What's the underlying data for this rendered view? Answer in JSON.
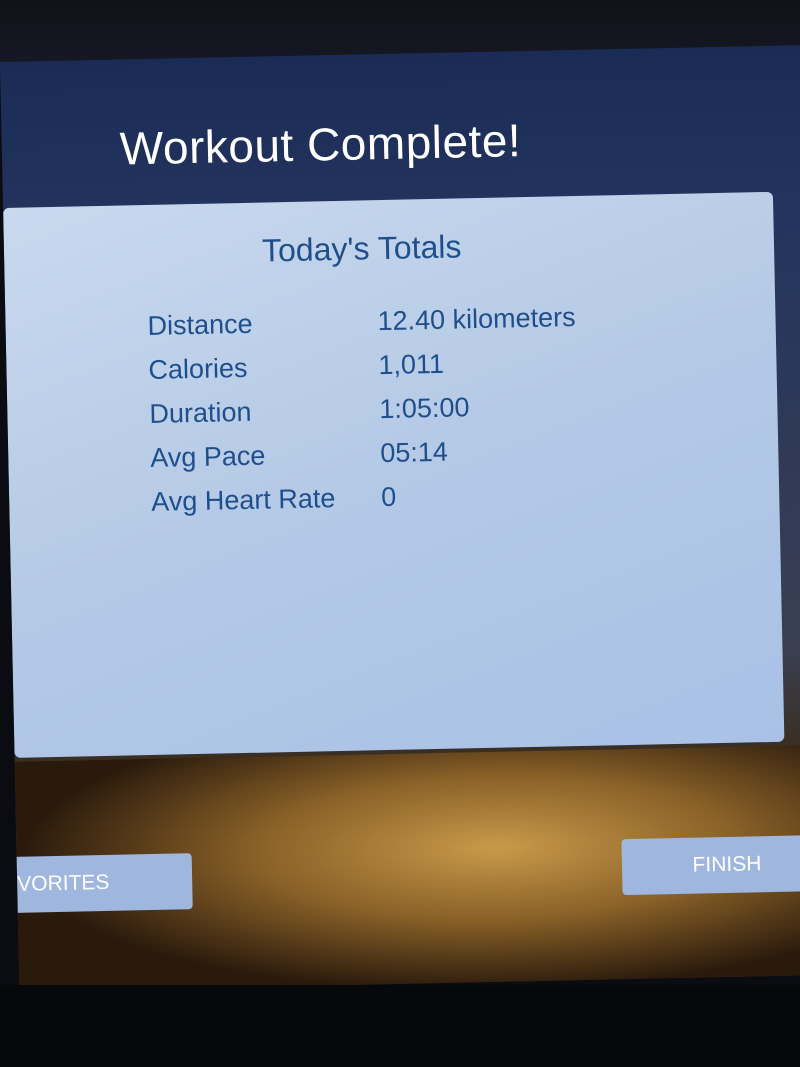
{
  "header": {
    "title": "Workout Complete!"
  },
  "totals": {
    "heading": "Today's Totals",
    "rows": [
      {
        "label": "Distance",
        "value": "12.40 kilometers"
      },
      {
        "label": "Calories",
        "value": "1,011"
      },
      {
        "label": "Duration",
        "value": "1:05:00"
      },
      {
        "label": "Avg Pace",
        "value": "05:14"
      },
      {
        "label": "Avg Heart Rate",
        "value": "0"
      }
    ]
  },
  "buttons": {
    "favorites": "VORITES",
    "finish": "FINISH"
  },
  "colors": {
    "panel": "#b4c9e6",
    "text": "#1e4f8c",
    "button": "#9fb6df"
  }
}
